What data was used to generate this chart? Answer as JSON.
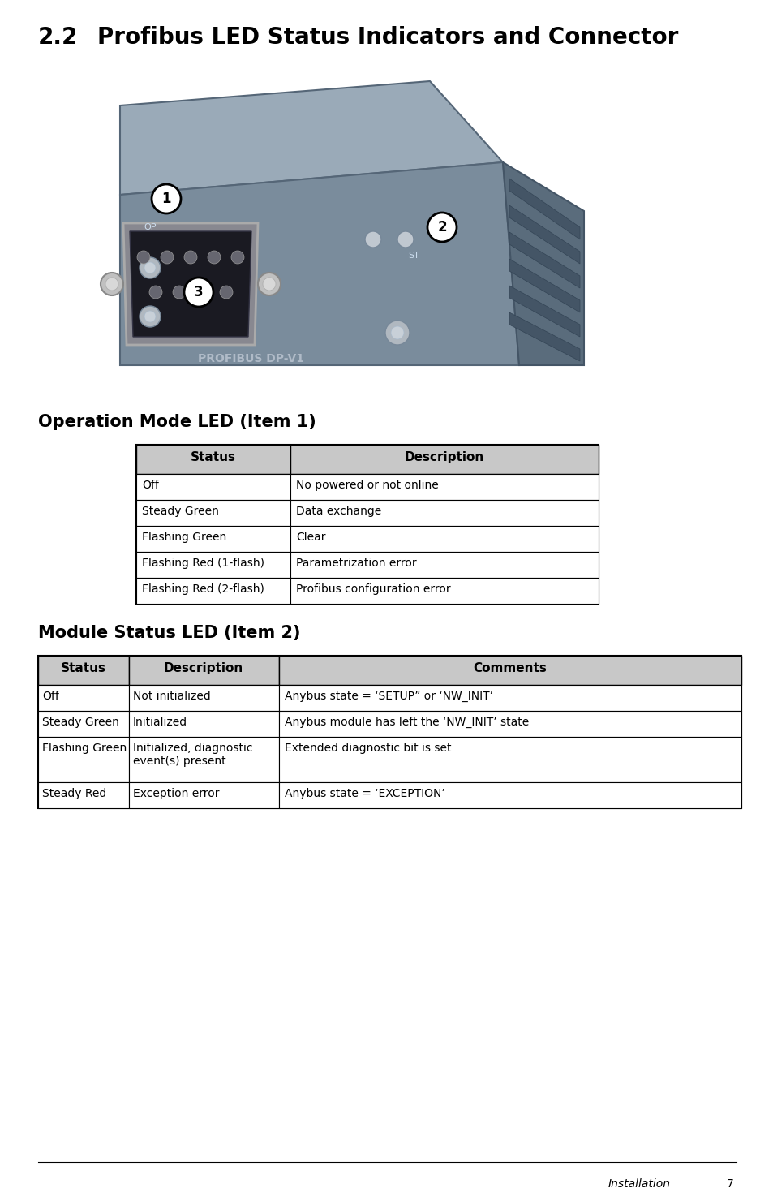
{
  "title_num": "2.2",
  "title_text": "Profibus LED Status Indicators and Connector",
  "section1_title": "Operation Mode LED (Item 1)",
  "section2_title": "Module Status LED (Item 2)",
  "table1_headers": [
    "Status",
    "Description"
  ],
  "table1_rows": [
    [
      "Off",
      "No powered or not online"
    ],
    [
      "Steady Green",
      "Data exchange"
    ],
    [
      "Flashing Green",
      "Clear"
    ],
    [
      "Flashing Red (1-flash)",
      "Parametrization error"
    ],
    [
      "Flashing Red (2-flash)",
      "Profibus configuration error"
    ]
  ],
  "table2_headers": [
    "Status",
    "Description",
    "Comments"
  ],
  "table2_rows": [
    [
      "Off",
      "Not initialized",
      "Anybus state = ‘SETUP” or ‘NW_INIT’"
    ],
    [
      "Steady Green",
      "Initialized",
      "Anybus module has left the ‘NW_INIT’ state"
    ],
    [
      "Flashing Green",
      "Initialized, diagnostic\nevent(s) present",
      "Extended diagnostic bit is set"
    ],
    [
      "Steady Red",
      "Exception error",
      "Anybus state = ‘EXCEPTION’"
    ]
  ],
  "footer_text": "Installation",
  "footer_page": "7",
  "bg_color": "#ffffff",
  "header_bg": "#cccccc",
  "table_border": "#000000",
  "body_color": "#7a8c9c",
  "body_dark": "#5a6c7c",
  "body_top": "#8a9cac"
}
